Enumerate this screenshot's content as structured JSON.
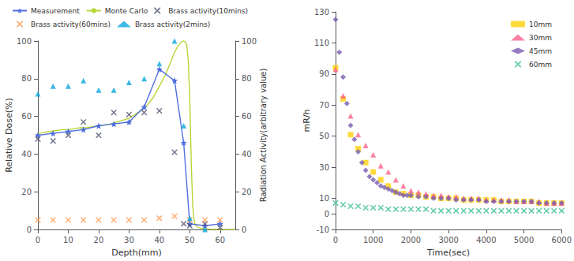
{
  "chart_data": [
    {
      "type": "line",
      "xlabel": "Depth(mm)",
      "ylabel": "Relative Dose(%)",
      "y2label": "Radiation Activity(arbitrary value)",
      "xlim": [
        0,
        65
      ],
      "xticks": [
        0,
        10,
        20,
        30,
        40,
        50,
        60
      ],
      "ylim": [
        0,
        100
      ],
      "yticks": [
        0,
        20,
        40,
        60,
        80,
        100
      ],
      "y2lim": [
        0,
        100
      ],
      "y2ticks": [
        0,
        20,
        40,
        60,
        80,
        100
      ],
      "grid": false,
      "legend": "upper left",
      "series": [
        {
          "name": "Measurement",
          "type": "line",
          "marker": "star",
          "line_style": "solid",
          "x": [
            0,
            5,
            10,
            15,
            20,
            25,
            30,
            35,
            40,
            45,
            48,
            50,
            55,
            60
          ],
          "values": [
            50,
            51,
            52,
            53,
            55,
            56,
            57,
            65,
            85,
            79,
            46,
            3,
            2,
            3
          ]
        },
        {
          "name": "Monte Carlo",
          "type": "line",
          "line_style": "solid",
          "x": [
            0,
            2,
            4,
            6,
            8,
            10,
            12,
            14,
            16,
            18,
            20,
            22,
            24,
            26,
            28,
            30,
            32,
            34,
            36,
            38,
            40,
            42,
            43,
            44,
            45,
            46,
            47,
            47.5,
            48,
            48.5,
            49,
            49.5,
            50,
            50.5,
            51,
            51.5,
            52,
            53,
            54,
            55,
            56,
            58,
            60,
            65
          ],
          "values": [
            51,
            51.5,
            52,
            52.5,
            53,
            53,
            53.5,
            54,
            54,
            54.5,
            55,
            55.5,
            56,
            57,
            58,
            59,
            61,
            63,
            66,
            70,
            76,
            82,
            86,
            90,
            94,
            97,
            99,
            99.8,
            100,
            99.5,
            98,
            90,
            70,
            35,
            12,
            4,
            2,
            1,
            0.5,
            0.3,
            0.2,
            0.1,
            0.0,
            0.0
          ]
        },
        {
          "name": "Brass activity(10mins)",
          "type": "scatter",
          "marker": "x",
          "x": [
            0,
            5,
            10,
            15,
            20,
            25,
            30,
            35,
            40,
            45,
            48,
            50,
            55,
            60
          ],
          "values": [
            48,
            47,
            50,
            57,
            50,
            62,
            61,
            62,
            63,
            41,
            3,
            2,
            3,
            1
          ]
        },
        {
          "name": "Brass activity(60mins)",
          "type": "scatter",
          "marker": "x",
          "x": [
            0,
            5,
            10,
            15,
            20,
            25,
            30,
            35,
            40,
            45,
            50,
            55,
            60
          ],
          "values": [
            5,
            5,
            5,
            5,
            5,
            5,
            5,
            5,
            6,
            7,
            5,
            5,
            5
          ]
        },
        {
          "name": "Brass activity(2mins)",
          "type": "scatter",
          "marker": "triangle",
          "x": [
            0,
            5,
            10,
            15,
            20,
            25,
            30,
            35,
            40,
            45,
            48,
            50,
            55
          ],
          "values": [
            72,
            76,
            76,
            79,
            74,
            74,
            78,
            80,
            88,
            100,
            55,
            6,
            0
          ]
        }
      ]
    },
    {
      "type": "scatter",
      "xlabel": "Time(sec)",
      "ylabel": "mR/h",
      "xlim": [
        0,
        6000
      ],
      "xticks": [
        0,
        1000,
        2000,
        3000,
        4000,
        5000,
        6000
      ],
      "ylim": [
        -10,
        130
      ],
      "yticks": [
        -10,
        0,
        10,
        30,
        50,
        70,
        90,
        110,
        130
      ],
      "grid": false,
      "legend": "upper right",
      "series": [
        {
          "name": "10mm",
          "marker": "square",
          "x": [
            0,
            200,
            400,
            600,
            800,
            1000,
            1200,
            1400,
            1600,
            1800,
            2000,
            2200,
            2400,
            2600,
            2800,
            3000,
            3200,
            3400,
            3600,
            3800,
            4000,
            4200,
            4400,
            4600,
            4800,
            5000,
            5200,
            5400,
            5600,
            5800,
            6000
          ],
          "values": [
            94,
            74,
            51,
            42,
            33,
            27,
            22,
            18,
            14,
            13,
            12,
            12,
            11,
            11,
            10,
            10,
            10,
            9,
            9,
            9,
            9,
            9,
            8,
            8,
            8,
            8,
            8,
            7,
            7,
            7,
            7
          ]
        },
        {
          "name": "30mm",
          "marker": "triangle",
          "x": [
            0,
            200,
            400,
            600,
            800,
            1000,
            1200,
            1400,
            1600,
            1800,
            2000,
            2200,
            2400,
            2600,
            2800,
            3000,
            3200,
            3400,
            3600,
            3800,
            4000,
            4200,
            4400,
            4600,
            4800,
            5000,
            5200,
            5400,
            5600,
            5800,
            6000
          ],
          "values": [
            93,
            76,
            63,
            51,
            44,
            38,
            31,
            27,
            22,
            18,
            15,
            14,
            13,
            12,
            12,
            11,
            11,
            10,
            10,
            10,
            9,
            9,
            9,
            9,
            8,
            8,
            8,
            8,
            7,
            7,
            7
          ]
        },
        {
          "name": "45mm",
          "marker": "diamond",
          "x": [
            0,
            100,
            200,
            300,
            400,
            500,
            600,
            700,
            800,
            900,
            1000,
            1100,
            1200,
            1300,
            1400,
            1500,
            1600,
            1700,
            1800,
            1900,
            2000,
            2200,
            2400,
            2600,
            2800,
            3000,
            3200,
            3400,
            3600,
            3800,
            4000,
            4200,
            4400,
            4600,
            4800,
            5000,
            5200,
            5400,
            5600,
            5800,
            6000
          ],
          "values": [
            125,
            104,
            88,
            71,
            57,
            48,
            40,
            33,
            28,
            24,
            22,
            20,
            18,
            17,
            16,
            15,
            14,
            13,
            12,
            12,
            12,
            11,
            11,
            10,
            10,
            10,
            9,
            9,
            9,
            9,
            8,
            8,
            8,
            8,
            8,
            8,
            8,
            7,
            7,
            7,
            7
          ]
        },
        {
          "name": "60mm",
          "marker": "x",
          "x": [
            0,
            200,
            400,
            600,
            800,
            1000,
            1200,
            1400,
            1600,
            1800,
            2000,
            2200,
            2400,
            2600,
            2800,
            3000,
            3200,
            3400,
            3600,
            3800,
            4000,
            4200,
            4400,
            4600,
            4800,
            5000,
            5200,
            5400,
            5600,
            5800,
            6000
          ],
          "values": [
            7,
            6,
            5,
            5,
            4,
            4,
            4,
            3,
            3,
            3,
            3,
            3,
            3,
            2,
            2,
            2,
            2,
            2,
            2,
            2,
            2,
            2,
            2,
            2,
            2,
            2,
            2,
            2,
            2,
            2,
            2
          ]
        }
      ]
    }
  ]
}
